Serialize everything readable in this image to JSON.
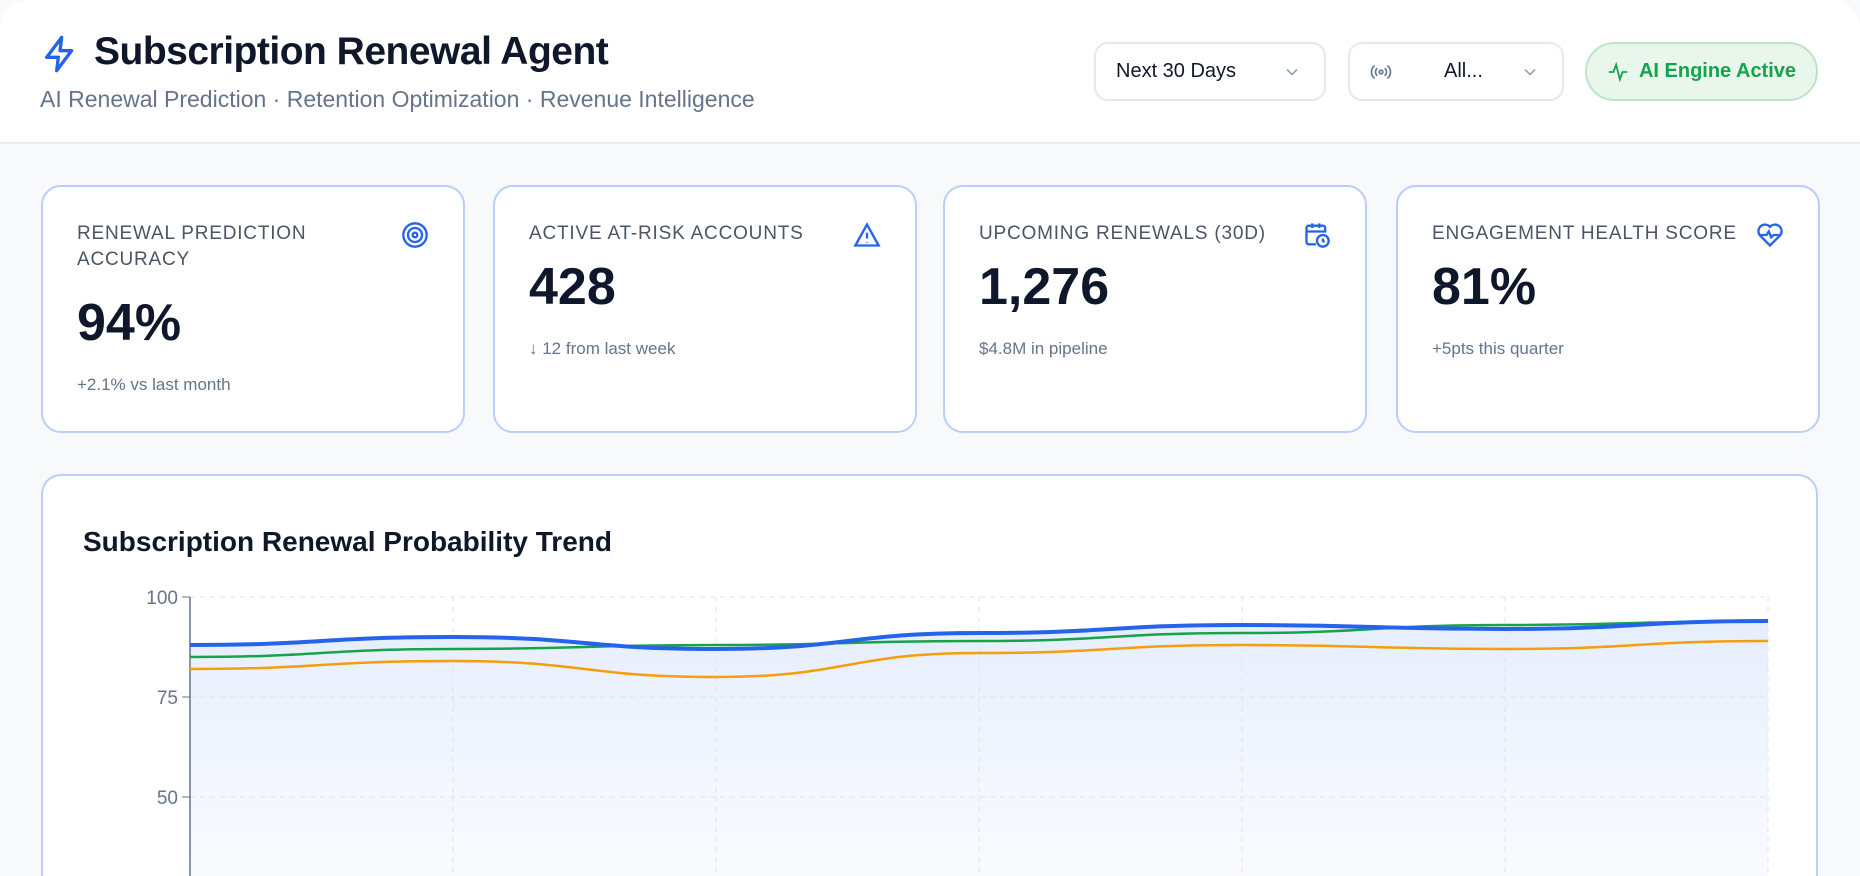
{
  "header": {
    "title": "Subscription Renewal Agent",
    "subtitle": "AI Renewal Prediction · Retention Optimization · Revenue Intelligence",
    "period_select": "Next 30 Days",
    "channel_select": "All...",
    "status_badge": "AI Engine Active"
  },
  "kpis": [
    {
      "label": "Renewal Prediction Accuracy",
      "value": "94%",
      "sub": "+2.1% vs last month",
      "icon": "target-icon"
    },
    {
      "label": "Active At-Risk Accounts",
      "value": "428",
      "sub": "↓ 12 from last week",
      "icon": "alert-triangle-icon"
    },
    {
      "label": "Upcoming Renewals (30D)",
      "value": "1,276",
      "sub": "$4.8M in pipeline",
      "icon": "calendar-clock-icon"
    },
    {
      "label": "Engagement Health Score",
      "value": "81%",
      "sub": "+5pts this quarter",
      "icon": "heart-pulse-icon"
    }
  ],
  "colors": {
    "accent": "#2563eb",
    "success": "#16a34a",
    "warning": "#f59e0b"
  },
  "chart_data": {
    "type": "line",
    "title": "Subscription Renewal Probability Trend",
    "ylim": [
      0,
      100
    ],
    "yticks": [
      "100",
      "75",
      "50"
    ],
    "grid": true,
    "series": [
      {
        "color": "#2563eb",
        "values": [
          88,
          90,
          87,
          91,
          93,
          92,
          94
        ]
      },
      {
        "color": "#16a34a",
        "values": [
          85,
          87,
          88,
          89,
          91,
          93,
          94
        ]
      },
      {
        "color": "#f59e0b",
        "values": [
          82,
          84,
          80,
          86,
          88,
          87,
          89
        ]
      }
    ]
  }
}
